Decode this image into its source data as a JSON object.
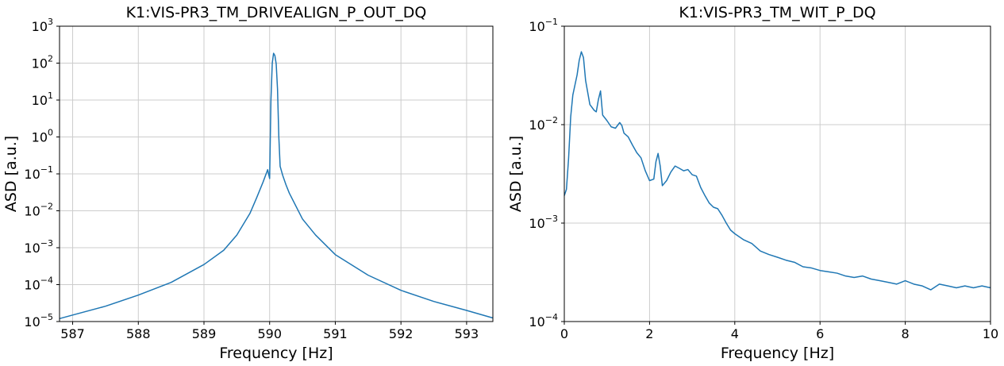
{
  "chart_data": [
    {
      "type": "line",
      "title": "K1:VIS-PR3_TM_DRIVEALIGN_P_OUT_DQ",
      "xlabel": "Frequency [Hz]",
      "ylabel": "ASD [a.u.]",
      "xscale": "linear",
      "yscale": "log",
      "xlim": [
        586.8,
        593.4
      ],
      "ylim": [
        1e-05,
        1000
      ],
      "grid": true,
      "xticks": [
        587,
        588,
        589,
        590,
        591,
        592,
        593
      ],
      "xtick_labels": [
        "587",
        "588",
        "589",
        "590",
        "591",
        "592",
        "593"
      ],
      "yticks": [
        1e-05,
        0.0001,
        0.001,
        0.01,
        0.1,
        1,
        10,
        100,
        1000
      ],
      "ytick_labels": [
        {
          "base": "10",
          "exp": "−5"
        },
        {
          "base": "10",
          "exp": "−4"
        },
        {
          "base": "10",
          "exp": "−3"
        },
        {
          "base": "10",
          "exp": "−2"
        },
        {
          "base": "10",
          "exp": "−1"
        },
        {
          "base": "10",
          "exp": "0"
        },
        {
          "base": "10",
          "exp": "1"
        },
        {
          "base": "10",
          "exp": "2"
        },
        {
          "base": "10",
          "exp": "3"
        }
      ],
      "color": "#1f77b4",
      "series": [
        {
          "x": [
            586.8,
            587.0,
            587.5,
            588.0,
            588.5,
            589.0,
            589.3,
            589.5,
            589.7,
            589.8,
            589.9,
            589.97,
            590.0,
            590.02,
            590.04,
            590.06,
            590.08,
            590.1,
            590.12,
            590.14,
            590.16,
            590.18,
            590.2,
            590.25,
            590.3,
            590.5,
            590.7,
            591.0,
            591.5,
            592.0,
            592.5,
            593.0,
            593.4
          ],
          "y": [
            1.2e-05,
            1.5e-05,
            2.6e-05,
            5.2e-05,
            0.000115,
            0.00035,
            0.00085,
            0.0022,
            0.0085,
            0.022,
            0.06,
            0.13,
            0.075,
            10,
            100,
            185,
            160,
            95,
            20,
            1.0,
            0.16,
            0.12,
            0.09,
            0.05,
            0.03,
            0.006,
            0.0022,
            0.00065,
            0.00018,
            7e-05,
            3.5e-05,
            2e-05,
            1.25e-05
          ]
        }
      ]
    },
    {
      "type": "line",
      "title": "K1:VIS-PR3_TM_WIT_P_DQ",
      "xlabel": "Frequency [Hz]",
      "ylabel": "ASD [a.u.]",
      "xscale": "linear",
      "yscale": "log",
      "xlim": [
        0,
        10
      ],
      "ylim": [
        0.0001,
        0.1
      ],
      "grid": true,
      "xticks": [
        0,
        2,
        4,
        6,
        8,
        10
      ],
      "xtick_labels": [
        "0",
        "2",
        "4",
        "6",
        "8",
        "10"
      ],
      "yticks": [
        0.0001,
        0.001,
        0.01,
        0.1
      ],
      "ytick_labels": [
        {
          "base": "10",
          "exp": "−4"
        },
        {
          "base": "10",
          "exp": "−3"
        },
        {
          "base": "10",
          "exp": "−2"
        },
        {
          "base": "10",
          "exp": "−1"
        }
      ],
      "color": "#1f77b4",
      "series": [
        {
          "x": [
            0,
            0.05,
            0.1,
            0.15,
            0.2,
            0.3,
            0.35,
            0.4,
            0.45,
            0.5,
            0.6,
            0.7,
            0.75,
            0.8,
            0.85,
            0.9,
            1.0,
            1.1,
            1.2,
            1.3,
            1.35,
            1.4,
            1.5,
            1.6,
            1.7,
            1.8,
            1.9,
            2.0,
            2.1,
            2.15,
            2.2,
            2.25,
            2.3,
            2.4,
            2.5,
            2.6,
            2.7,
            2.8,
            2.9,
            3.0,
            3.1,
            3.2,
            3.3,
            3.4,
            3.5,
            3.6,
            3.7,
            3.8,
            3.9,
            4.0,
            4.2,
            4.4,
            4.6,
            4.8,
            5.0,
            5.2,
            5.4,
            5.6,
            5.8,
            6.0,
            6.2,
            6.4,
            6.6,
            6.8,
            7.0,
            7.2,
            7.4,
            7.6,
            7.8,
            8.0,
            8.2,
            8.4,
            8.6,
            8.8,
            9.0,
            9.2,
            9.4,
            9.6,
            9.8,
            10.0
          ],
          "y": [
            0.0019,
            0.0022,
            0.0045,
            0.012,
            0.02,
            0.032,
            0.045,
            0.055,
            0.048,
            0.028,
            0.016,
            0.014,
            0.0135,
            0.018,
            0.022,
            0.0125,
            0.011,
            0.0095,
            0.0092,
            0.0105,
            0.0098,
            0.0082,
            0.0075,
            0.0062,
            0.0052,
            0.0046,
            0.0034,
            0.0027,
            0.0028,
            0.0042,
            0.0051,
            0.0038,
            0.0024,
            0.0027,
            0.0033,
            0.0038,
            0.0036,
            0.0034,
            0.0035,
            0.0031,
            0.003,
            0.0023,
            0.0019,
            0.0016,
            0.00145,
            0.0014,
            0.0012,
            0.001,
            0.00085,
            0.00078,
            0.00068,
            0.00062,
            0.00052,
            0.00048,
            0.00045,
            0.00042,
            0.0004,
            0.00036,
            0.00035,
            0.00033,
            0.00032,
            0.00031,
            0.00029,
            0.00028,
            0.00029,
            0.00027,
            0.00026,
            0.00025,
            0.00024,
            0.00026,
            0.00024,
            0.00023,
            0.00021,
            0.00024,
            0.00023,
            0.00022,
            0.00023,
            0.00022,
            0.00023,
            0.00022
          ]
        }
      ]
    }
  ]
}
